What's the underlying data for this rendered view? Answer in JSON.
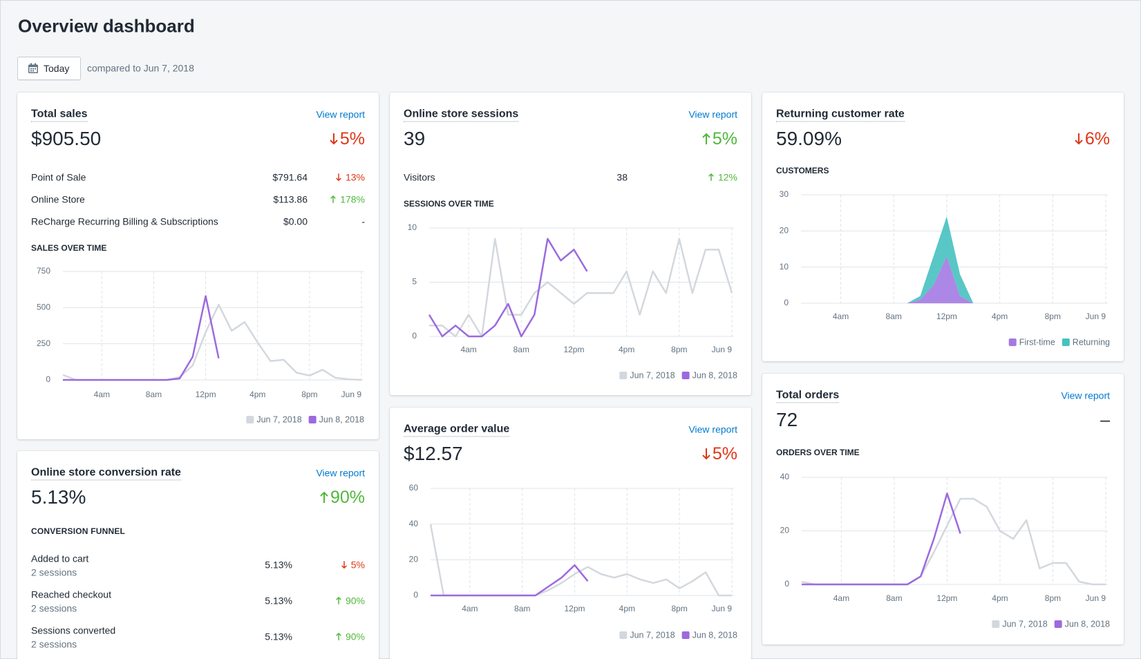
{
  "header": {
    "title": "Overview dashboard",
    "date_button": "Today",
    "comparison": "compared to Jun 7, 2018"
  },
  "cards": [
    {
      "title": "Total sales",
      "link": "View report",
      "value": "$905.50",
      "change": "5%",
      "direction": "down",
      "rows": [
        {
          "label": "Point of Sale",
          "amount": "$791.64",
          "change": "13%",
          "direction": "down"
        },
        {
          "label": "Online Store",
          "amount": "$113.86",
          "change": "178%",
          "direction": "up"
        },
        {
          "label": "ReCharge Recurring Billing & Subscriptions",
          "amount": "$0.00",
          "change": "-"
        }
      ]
    },
    {
      "title": "Online store sessions",
      "link": "View report",
      "value": "39",
      "change": "5%",
      "direction": "up",
      "rows": [
        {
          "label": "Visitors",
          "amount": "38",
          "change": "12%",
          "direction": "up"
        }
      ]
    },
    {
      "title": "Returning customer rate",
      "value": "59.09%",
      "change": "6%",
      "direction": "down"
    },
    {
      "title": "Online store conversion rate",
      "link": "View report",
      "value": "5.13%",
      "change": "90%",
      "direction": "up",
      "section": "CONVERSION FUNNEL",
      "rows": [
        {
          "label": "Added to cart",
          "detail": "2 sessions",
          "amount": "5.13%",
          "change": "5%",
          "direction": "down"
        },
        {
          "label": "Reached checkout",
          "detail": "2 sessions",
          "amount": "5.13%",
          "change": "90%",
          "direction": "up"
        },
        {
          "label": "Sessions converted",
          "detail": "2 sessions",
          "amount": "5.13%",
          "change": "90%",
          "direction": "up"
        }
      ]
    },
    {
      "title": "Average order value",
      "link": "View report",
      "value": "$12.57",
      "change": "5%",
      "direction": "down"
    },
    {
      "title": "Total orders",
      "link": "View report",
      "value": "72",
      "change": "–"
    }
  ],
  "chart_data": [
    {
      "type": "line",
      "title": "SALES OVER TIME",
      "categories": [
        null,
        null,
        null,
        "4am",
        null,
        null,
        null,
        "8am",
        null,
        null,
        null,
        "12pm",
        null,
        null,
        null,
        "4pm",
        null,
        null,
        null,
        "8pm",
        null,
        null,
        null,
        "Jun 9"
      ],
      "ylim": [
        0,
        750
      ],
      "yticks": [
        0,
        250,
        500,
        750
      ],
      "grid": true,
      "series": [
        {
          "name": "Jun 7, 2018",
          "color": "#d3d8de",
          "values": [
            35,
            0,
            0,
            0,
            0,
            0,
            0,
            0,
            0,
            20,
            100,
            330,
            520,
            340,
            400,
            260,
            130,
            140,
            50,
            30,
            70,
            15,
            5,
            0
          ]
        },
        {
          "name": "Jun 8, 2018",
          "color": "#9c6ade",
          "values": [
            0,
            0,
            0,
            0,
            0,
            0,
            0,
            0,
            0,
            10,
            160,
            580,
            150,
            null,
            null,
            null,
            null,
            null,
            null,
            null,
            null,
            null,
            null,
            null
          ]
        }
      ]
    },
    {
      "type": "line",
      "title": "SESSIONS OVER TIME",
      "categories": [
        null,
        null,
        null,
        "4am",
        null,
        null,
        null,
        "8am",
        null,
        null,
        null,
        "12pm",
        null,
        null,
        null,
        "4pm",
        null,
        null,
        null,
        "8pm",
        null,
        null,
        null,
        "Jun 9"
      ],
      "ylim": [
        0,
        10
      ],
      "yticks": [
        0,
        5,
        10
      ],
      "grid": true,
      "series": [
        {
          "name": "Jun 7, 2018",
          "color": "#d3d8de",
          "values": [
            1,
            1,
            0,
            2,
            0,
            9,
            2,
            2,
            4,
            5,
            4,
            3,
            4,
            4,
            4,
            6,
            2,
            6,
            4,
            9,
            4,
            8,
            8,
            4
          ]
        },
        {
          "name": "Jun 8, 2018",
          "color": "#9c6ade",
          "values": [
            2,
            0,
            1,
            0,
            0,
            1,
            3,
            0,
            2,
            9,
            7,
            8,
            6,
            null,
            null,
            null,
            null,
            null,
            null,
            null,
            null,
            null,
            null,
            null
          ]
        }
      ]
    },
    {
      "type": "area",
      "title": "CUSTOMERS",
      "categories": [
        null,
        null,
        null,
        "4am",
        null,
        null,
        null,
        "8am",
        null,
        null,
        null,
        "12pm",
        null,
        null,
        null,
        "4pm",
        null,
        null,
        null,
        "8pm",
        null,
        null,
        null,
        "Jun 9"
      ],
      "ylim": [
        0,
        30
      ],
      "yticks": [
        0,
        10,
        20,
        30
      ],
      "grid": true,
      "series": [
        {
          "name": "First-time",
          "color": "#a47ae2",
          "values": [
            0,
            0,
            0,
            0,
            0,
            0,
            0,
            0,
            0,
            1,
            5,
            13,
            2,
            0,
            0,
            0,
            0,
            0,
            0,
            0,
            0,
            0,
            0,
            0
          ]
        },
        {
          "name": "Returning",
          "color": "#47c1bf",
          "values": [
            0,
            0,
            0,
            0,
            0,
            0,
            0,
            0,
            0,
            1,
            8,
            11,
            6,
            0,
            0,
            0,
            0,
            0,
            0,
            0,
            0,
            0,
            0,
            0
          ]
        }
      ]
    },
    {
      "type": "line",
      "categories": [
        null,
        null,
        null,
        "4am",
        null,
        null,
        null,
        "8am",
        null,
        null,
        null,
        "12pm",
        null,
        null,
        null,
        "4pm",
        null,
        null,
        null,
        "8pm",
        null,
        null,
        null,
        "Jun 9"
      ],
      "ylim": [
        0,
        60
      ],
      "yticks": [
        0,
        20,
        40,
        60
      ],
      "grid": true,
      "series": [
        {
          "name": "Jun 7, 2018",
          "color": "#d3d8de",
          "values": [
            40,
            0,
            0,
            0,
            0,
            0,
            0,
            0,
            0,
            3,
            7,
            12,
            16,
            12,
            10,
            12,
            9,
            7,
            9,
            4,
            8,
            13,
            0,
            0
          ]
        },
        {
          "name": "Jun 8, 2018",
          "color": "#9c6ade",
          "values": [
            0,
            0,
            0,
            0,
            0,
            0,
            0,
            0,
            0,
            5,
            10,
            17,
            8,
            null,
            null,
            null,
            null,
            null,
            null,
            null,
            null,
            null,
            null,
            null
          ]
        }
      ]
    },
    {
      "type": "line",
      "title": "ORDERS OVER TIME",
      "categories": [
        null,
        null,
        null,
        "4am",
        null,
        null,
        null,
        "8am",
        null,
        null,
        null,
        "12pm",
        null,
        null,
        null,
        "4pm",
        null,
        null,
        null,
        "8pm",
        null,
        null,
        null,
        "Jun 9"
      ],
      "ylim": [
        0,
        40
      ],
      "yticks": [
        0,
        20,
        40
      ],
      "grid": true,
      "series": [
        {
          "name": "Jun 7, 2018",
          "color": "#d3d8de",
          "values": [
            1,
            0,
            0,
            0,
            0,
            0,
            0,
            0,
            0,
            3,
            12,
            22,
            32,
            32,
            29,
            20,
            17,
            24,
            6,
            8,
            8,
            1,
            0,
            0
          ]
        },
        {
          "name": "Jun 8, 2018",
          "color": "#9c6ade",
          "values": [
            0,
            0,
            0,
            0,
            0,
            0,
            0,
            0,
            0,
            3,
            17,
            34,
            19,
            null,
            null,
            null,
            null,
            null,
            null,
            null,
            null,
            null,
            null,
            null
          ]
        }
      ]
    }
  ]
}
